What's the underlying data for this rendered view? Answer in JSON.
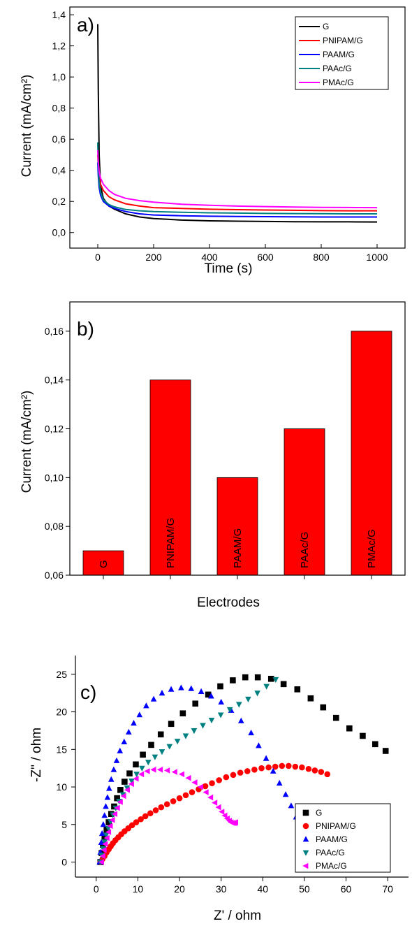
{
  "colors": {
    "G": "#000000",
    "PNIPAM/G": "#ff0000",
    "PAAM/G": "#0000ff",
    "PAAc/G": "#008080",
    "PMAc/G": "#ff00ff",
    "bar": "#ff0000"
  },
  "chart_data": [
    {
      "panel": "a)",
      "type": "line",
      "xlabel": "Time (s)",
      "ylabel": "Current (mA/cm²)",
      "xlim": [
        -100,
        1100
      ],
      "ylim": [
        -0.1,
        1.45
      ],
      "xticks": [
        0,
        200,
        400,
        600,
        800,
        1000
      ],
      "xtick_labels": [
        "0",
        "200",
        "400",
        "600",
        "800",
        "1000"
      ],
      "yticks": [
        0.0,
        0.2,
        0.4,
        0.6,
        0.8,
        1.0,
        1.2,
        1.4
      ],
      "ytick_labels": [
        "0,0",
        "0,2",
        "0,4",
        "0,6",
        "0,8",
        "1,0",
        "1,2",
        "1,4"
      ],
      "legend_position": "top-right",
      "series": [
        {
          "name": "G",
          "color_key": "G",
          "x": [
            0,
            2,
            5,
            10,
            20,
            40,
            60,
            100,
            150,
            200,
            250,
            300,
            400,
            500,
            600,
            700,
            800,
            900,
            1000
          ],
          "y": [
            1.34,
            0.9,
            0.5,
            0.3,
            0.22,
            0.17,
            0.15,
            0.12,
            0.1,
            0.09,
            0.085,
            0.08,
            0.075,
            0.073,
            0.071,
            0.07,
            0.069,
            0.069,
            0.068
          ]
        },
        {
          "name": "PNIPAM/G",
          "color_key": "PNIPAM/G",
          "x": [
            0,
            2,
            5,
            10,
            20,
            40,
            60,
            100,
            150,
            200,
            300,
            400,
            500,
            600,
            700,
            800,
            900,
            1000
          ],
          "y": [
            0.5,
            0.42,
            0.36,
            0.31,
            0.27,
            0.23,
            0.21,
            0.185,
            0.17,
            0.16,
            0.155,
            0.15,
            0.147,
            0.145,
            0.143,
            0.141,
            0.14,
            0.14
          ]
        },
        {
          "name": "PAAM/G",
          "color_key": "PAAM/G",
          "x": [
            0,
            2,
            5,
            10,
            20,
            40,
            60,
            100,
            150,
            200,
            300,
            400,
            500,
            600,
            700,
            800,
            900,
            1000
          ],
          "y": [
            0.45,
            0.36,
            0.29,
            0.24,
            0.2,
            0.17,
            0.155,
            0.135,
            0.12,
            0.113,
            0.108,
            0.105,
            0.103,
            0.102,
            0.101,
            0.1,
            0.1,
            0.1
          ]
        },
        {
          "name": "PAAc/G",
          "color_key": "PAAc/G",
          "x": [
            0,
            2,
            5,
            10,
            20,
            40,
            60,
            100,
            150,
            200,
            300,
            400,
            500,
            600,
            700,
            800,
            900,
            1000
          ],
          "y": [
            0.58,
            0.42,
            0.32,
            0.26,
            0.21,
            0.18,
            0.165,
            0.148,
            0.14,
            0.135,
            0.13,
            0.127,
            0.125,
            0.123,
            0.122,
            0.121,
            0.12,
            0.12
          ]
        },
        {
          "name": "PMAc/G",
          "color_key": "PMAc/G",
          "x": [
            0,
            2,
            5,
            10,
            20,
            40,
            60,
            100,
            150,
            200,
            300,
            400,
            500,
            600,
            700,
            800,
            900,
            1000
          ],
          "y": [
            0.53,
            0.45,
            0.39,
            0.35,
            0.31,
            0.27,
            0.245,
            0.22,
            0.205,
            0.195,
            0.182,
            0.175,
            0.17,
            0.167,
            0.164,
            0.162,
            0.161,
            0.16
          ]
        }
      ]
    },
    {
      "panel": "b)",
      "type": "bar",
      "xlabel": "Electrodes",
      "ylabel": "Current (mA/cm²)",
      "ylim": [
        0.06,
        0.172
      ],
      "yticks": [
        0.06,
        0.08,
        0.1,
        0.12,
        0.14,
        0.16
      ],
      "ytick_labels": [
        "0,06",
        "0,08",
        "0,10",
        "0,12",
        "0,14",
        "0,16"
      ],
      "categories": [
        "G",
        "PNIPAM/G",
        "PAAM/G",
        "PAAc/G",
        "PMAc/G"
      ],
      "values": [
        0.07,
        0.14,
        0.1,
        0.12,
        0.16
      ],
      "color_key": "bar"
    },
    {
      "panel": "c)",
      "type": "scatter",
      "xlabel": "Z' / ohm",
      "ylabel": "-Z'' / ohm",
      "xlim": [
        -5,
        75
      ],
      "ylim": [
        -2,
        27.5
      ],
      "xticks": [
        0,
        10,
        20,
        30,
        40,
        50,
        60,
        70
      ],
      "xtick_labels": [
        "0",
        "10",
        "20",
        "30",
        "40",
        "50",
        "60",
        "70"
      ],
      "yticks": [
        0,
        5,
        10,
        15,
        20,
        25
      ],
      "ytick_labels": [
        "0",
        "5",
        "10",
        "15",
        "20",
        "25"
      ],
      "legend_position": "bottom-right",
      "series": [
        {
          "name": "G",
          "color_key": "G",
          "marker": "square",
          "x": [
            1,
            1.3,
            1.6,
            2,
            2.5,
            3,
            3.6,
            4.3,
            5,
            5.8,
            6.8,
            8,
            9.5,
            11.2,
            13.2,
            15.5,
            18,
            20.8,
            23.8,
            26.9,
            29.8,
            32.8,
            35.8,
            38.8,
            42,
            45,
            48.3,
            51.5,
            54.5,
            57.6,
            60.8,
            64,
            67,
            69.5
          ],
          "y": [
            0,
            1.2,
            2.3,
            3.3,
            4.3,
            5.3,
            6.4,
            7.4,
            8.5,
            9.6,
            10.7,
            11.8,
            13,
            14.3,
            15.6,
            17,
            18.4,
            19.8,
            21.1,
            22.3,
            23.4,
            24.2,
            24.6,
            24.6,
            24.4,
            23.7,
            23,
            21.8,
            20.6,
            19.2,
            17.8,
            16.8,
            15.7,
            14.8
          ]
        },
        {
          "name": "PNIPAM/G",
          "color_key": "PNIPAM/G",
          "marker": "circle",
          "x": [
            1,
            1.5,
            2,
            2.5,
            3,
            3.5,
            4,
            4.6,
            5.3,
            6,
            6.8,
            7.7,
            8.6,
            9.6,
            10.7,
            11.8,
            13,
            14.3,
            15.6,
            17,
            18.5,
            20,
            21.5,
            23,
            24.6,
            26.2,
            27.8,
            29.5,
            31.2,
            32.9,
            34.6,
            36.3,
            38,
            39.7,
            41.4,
            43,
            44.6,
            46.2,
            47.8,
            49.4,
            51,
            52.5,
            54,
            55.5
          ],
          "y": [
            0,
            0.4,
            0.8,
            1.3,
            1.7,
            2.1,
            2.5,
            2.9,
            3.3,
            3.7,
            4.1,
            4.5,
            4.9,
            5.3,
            5.7,
            6.1,
            6.5,
            6.9,
            7.3,
            7.7,
            8.1,
            8.5,
            8.9,
            9.3,
            9.7,
            10.1,
            10.5,
            10.9,
            11.3,
            11.6,
            11.9,
            12.1,
            12.3,
            12.5,
            12.6,
            12.7,
            12.8,
            12.8,
            12.7,
            12.6,
            12.4,
            12.2,
            12,
            11.7
          ]
        },
        {
          "name": "PAAM/G",
          "color_key": "PAAM/G",
          "marker": "triangle-up",
          "x": [
            0.8,
            1,
            1.2,
            1.4,
            1.7,
            2,
            2.3,
            2.7,
            3.1,
            3.6,
            4.2,
            4.9,
            5.7,
            6.7,
            7.8,
            9,
            10.4,
            12,
            13.8,
            15.8,
            18,
            20.4,
            22.8,
            25.2,
            27.6,
            30,
            32.4,
            34.8,
            37.2,
            39,
            40.8,
            42.5,
            44,
            45.5,
            46.8,
            48,
            49,
            50
          ],
          "y": [
            0,
            1.3,
            2.6,
            3.8,
            5,
            6.2,
            7.4,
            8.6,
            9.8,
            11,
            12.3,
            13.5,
            14.8,
            16,
            17.3,
            18.5,
            19.6,
            20.8,
            21.7,
            22.5,
            23,
            23.2,
            23.1,
            22.7,
            22.1,
            21.3,
            20.2,
            18.8,
            17.2,
            15.5,
            13.8,
            12.1,
            10.5,
            9,
            7.5,
            6,
            4.5,
            3
          ]
        },
        {
          "name": "PAAc/G",
          "color_key": "PAAc/G",
          "marker": "triangle-down",
          "x": [
            1,
            1.3,
            1.6,
            2,
            2.4,
            2.9,
            3.4,
            4,
            4.7,
            5.5,
            6.4,
            7.4,
            8.5,
            9.7,
            11,
            12.5,
            14.1,
            15.8,
            17.6,
            19.5,
            21.5,
            23.5,
            25.6,
            27.7,
            29.9,
            32.1,
            34.3,
            36.5,
            38.7,
            40.9,
            43.1
          ],
          "y": [
            0,
            0.9,
            1.8,
            2.7,
            3.6,
            4.5,
            5.4,
            6.3,
            7.2,
            8.1,
            9,
            9.9,
            10.8,
            11.7,
            12.5,
            13.3,
            14,
            14.7,
            15.4,
            16.1,
            16.8,
            17.5,
            18.2,
            18.9,
            19.6,
            20.3,
            21,
            21.7,
            22.5,
            23.4,
            24.3
          ]
        },
        {
          "name": "PMAc/G",
          "color_key": "PMAc/G",
          "marker": "triangle-left",
          "x": [
            1.3,
            1.6,
            1.9,
            2.2,
            2.6,
            3,
            3.4,
            3.9,
            4.5,
            5.1,
            5.8,
            6.6,
            7.5,
            8.5,
            9.6,
            10.9,
            12.3,
            13.8,
            15.4,
            17.1,
            18.9,
            20.6,
            22.2,
            23.7,
            25.1,
            26.4,
            27.5,
            28.5,
            29.4,
            30.2,
            30.9,
            31.5,
            32,
            32.4,
            32.8,
            33.1,
            33.3,
            33.5
          ],
          "y": [
            0,
            0.8,
            1.6,
            2.4,
            3.2,
            4,
            4.8,
            5.6,
            6.4,
            7.2,
            8,
            8.8,
            9.6,
            10.4,
            11.1,
            11.7,
            12.1,
            12.3,
            12.3,
            12.2,
            12,
            11.7,
            11.2,
            10.6,
            10,
            9.3,
            8.6,
            7.9,
            7.3,
            6.7,
            6.2,
            5.8,
            5.5,
            5.3,
            5.2,
            5.2,
            5.2,
            5.3
          ]
        }
      ]
    }
  ]
}
